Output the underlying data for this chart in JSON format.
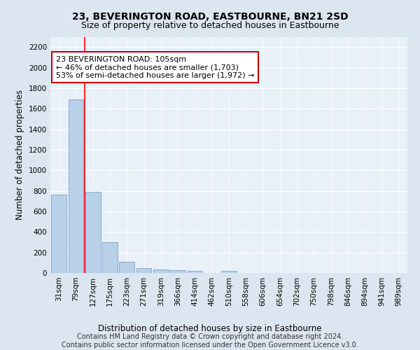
{
  "title": "23, BEVERINGTON ROAD, EASTBOURNE, BN21 2SD",
  "subtitle": "Size of property relative to detached houses in Eastbourne",
  "xlabel": "Distribution of detached houses by size in Eastbourne",
  "ylabel": "Number of detached properties",
  "bar_labels": [
    "31sqm",
    "79sqm",
    "127sqm",
    "175sqm",
    "223sqm",
    "271sqm",
    "319sqm",
    "366sqm",
    "414sqm",
    "462sqm",
    "510sqm",
    "558sqm",
    "606sqm",
    "654sqm",
    "702sqm",
    "750sqm",
    "798sqm",
    "846sqm",
    "894sqm",
    "941sqm",
    "989sqm"
  ],
  "bar_values": [
    760,
    1690,
    790,
    300,
    110,
    45,
    32,
    25,
    20,
    0,
    20,
    0,
    0,
    0,
    0,
    0,
    0,
    0,
    0,
    0,
    0
  ],
  "bar_color": "#b8d0e8",
  "bar_edgecolor": "#6a9abf",
  "redline_x": 1.5,
  "annotation_text": "23 BEVERINGTON ROAD: 105sqm\n← 46% of detached houses are smaller (1,703)\n53% of semi-detached houses are larger (1,972) →",
  "annotation_box_color": "#ffffff",
  "annotation_box_edgecolor": "#cc0000",
  "ylim": [
    0,
    2300
  ],
  "yticks": [
    0,
    200,
    400,
    600,
    800,
    1000,
    1200,
    1400,
    1600,
    1800,
    2000,
    2200
  ],
  "bg_color": "#dce6f0",
  "plot_bg_color": "#e8f0f8",
  "footer_text": "Contains HM Land Registry data © Crown copyright and database right 2024.\nContains public sector information licensed under the Open Government Licence v3.0.",
  "title_fontsize": 10,
  "subtitle_fontsize": 9,
  "axis_label_fontsize": 8.5,
  "tick_fontsize": 7.5,
  "annotation_fontsize": 8,
  "footer_fontsize": 7
}
